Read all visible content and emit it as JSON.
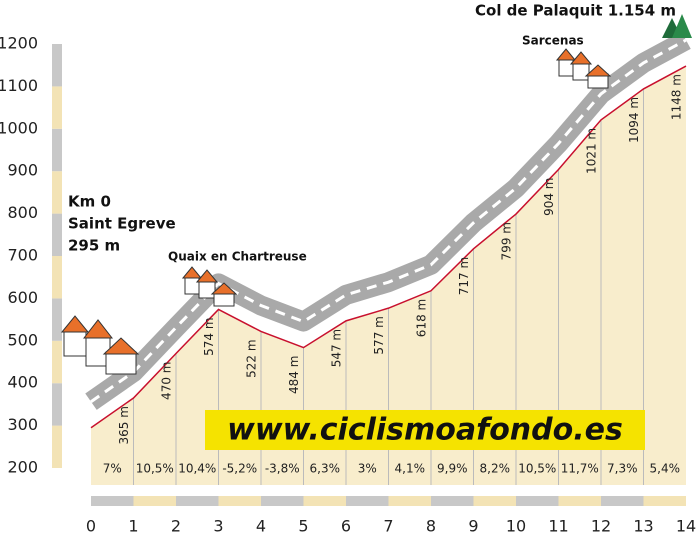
{
  "chart_data": {
    "type": "elevation-profile",
    "title": "Col de Palaquit 1.154 m",
    "annotations": {
      "start_km": "Km 0",
      "start_place": "Saint Egreve",
      "village_1": "Quaix en Chartreuse",
      "village_2": "Sarcenas",
      "website": "www.ciclismoafondo.es"
    },
    "x": [
      0,
      1,
      2,
      3,
      4,
      5,
      6,
      7,
      8,
      9,
      10,
      11,
      12,
      13,
      14
    ],
    "values": [
      295,
      365,
      470,
      574,
      522,
      484,
      547,
      577,
      618,
      717,
      799,
      904,
      1021,
      1094,
      1148
    ],
    "value_labels": [
      "295 m",
      "365 m",
      "470 m",
      "574 m",
      "522 m",
      "484 m",
      "547 m",
      "577 m",
      "618 m",
      "717 m",
      "799 m",
      "904 m",
      "1021 m",
      "1094 m",
      "1148 m"
    ],
    "gradient_labels": [
      "7%",
      "10,5%",
      "10,4%",
      "-5,2%",
      "-3,8%",
      "6,3%",
      "3%",
      "4,1%",
      "9,9%",
      "8,2%",
      "10,5%",
      "11,7%",
      "7,3%",
      "5,4%"
    ],
    "color": "#c8102e",
    "xlim": [
      0,
      14
    ],
    "xticks": [
      0,
      1,
      2,
      3,
      4,
      5,
      6,
      7,
      8,
      9,
      10,
      11,
      12,
      13,
      14
    ],
    "ylim": [
      200,
      1200
    ],
    "yticks": [
      200,
      300,
      400,
      500,
      600,
      700,
      800,
      900,
      1000,
      1100,
      1200
    ]
  }
}
